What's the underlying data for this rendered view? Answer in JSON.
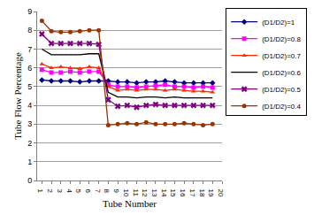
{
  "chart_data": {
    "type": "line",
    "x_label": "Tube Number",
    "y_label": "Tube Flow Percentage",
    "x": [
      1,
      2,
      3,
      4,
      5,
      6,
      7,
      8,
      9,
      10,
      11,
      12,
      13,
      14,
      15,
      16,
      17,
      18,
      19
    ],
    "xlim": [
      0.5,
      20
    ],
    "xticks": [
      1,
      2,
      3,
      4,
      5,
      6,
      7,
      8,
      9,
      10,
      11,
      12,
      13,
      14,
      15,
      16,
      17,
      18,
      19,
      20
    ],
    "ylim": [
      0,
      9
    ],
    "yticks": [
      0,
      1,
      2,
      3,
      4,
      5,
      6,
      7,
      8,
      9
    ],
    "grid": true,
    "legend": "upper right outside",
    "series": [
      {
        "name": "(D1/D2)=1",
        "color": "#000080",
        "marker": "diamond",
        "line_style": "solid",
        "values": [
          5.35,
          5.3,
          5.3,
          5.3,
          5.25,
          5.3,
          5.3,
          5.3,
          5.25,
          5.25,
          5.2,
          5.25,
          5.25,
          5.3,
          5.25,
          5.2,
          5.2,
          5.2,
          5.2
        ]
      },
      {
        "name": "(D1/D2)=0.8",
        "color": "#ff00ff",
        "marker": "square",
        "line_style": "solid",
        "values": [
          5.9,
          5.75,
          5.75,
          5.8,
          5.75,
          5.8,
          5.8,
          5.1,
          5.0,
          5.0,
          4.95,
          5.0,
          5.05,
          5.1,
          5.0,
          5.0,
          4.95,
          5.0,
          4.95
        ]
      },
      {
        "name": "(D1/D2)=0.7",
        "color": "#ff2a00",
        "marker": "triangle-up",
        "line_style": "solid",
        "values": [
          6.2,
          6.0,
          6.05,
          6.0,
          5.95,
          6.05,
          6.0,
          5.0,
          4.8,
          4.85,
          4.8,
          4.85,
          4.85,
          4.8,
          4.85,
          4.8,
          4.75,
          4.75,
          4.7
        ]
      },
      {
        "name": "(D1/D2)=0.6",
        "color": "#000000",
        "marker": "none",
        "line_style": "solid",
        "values": [
          7.0,
          6.7,
          6.7,
          6.7,
          6.7,
          6.75,
          6.75,
          4.7,
          4.45,
          4.45,
          4.4,
          4.45,
          4.45,
          4.4,
          4.45,
          4.4,
          4.4,
          4.4,
          4.4
        ]
      },
      {
        "name": "(D1/D2)=0.5",
        "color": "#800080",
        "marker": "x",
        "line_style": "solid",
        "values": [
          7.8,
          7.3,
          7.3,
          7.3,
          7.3,
          7.3,
          7.25,
          4.3,
          3.95,
          4.0,
          3.9,
          4.0,
          4.05,
          4.0,
          4.0,
          4.0,
          4.0,
          4.0,
          4.0
        ]
      },
      {
        "name": "(D1/D2)=0.4",
        "color": "#993300",
        "marker": "circle",
        "line_style": "solid",
        "values": [
          8.5,
          7.95,
          7.9,
          7.9,
          7.95,
          8.0,
          8.0,
          2.95,
          3.0,
          3.05,
          3.0,
          3.1,
          3.0,
          3.0,
          3.0,
          3.05,
          3.0,
          2.95,
          3.0
        ]
      }
    ]
  }
}
